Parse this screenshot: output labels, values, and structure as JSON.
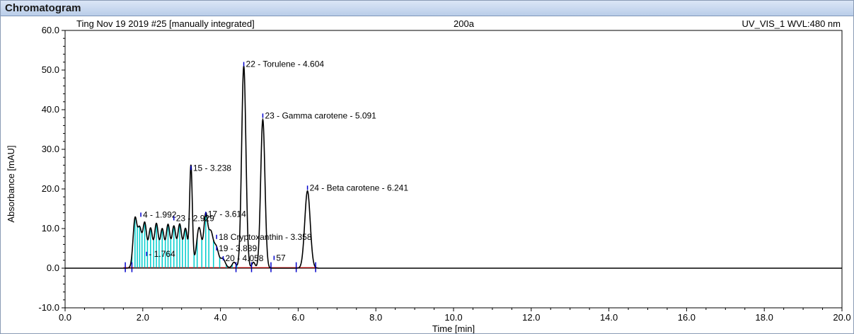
{
  "window": {
    "title": "Chromatogram"
  },
  "chart_data": {
    "type": "line",
    "header_left": "Ting Nov 19 2019 #25 [manually integrated]",
    "header_center": "200a",
    "header_right": "UV_VIS_1 WVL:480 nm",
    "xlabel": "Time [min]",
    "ylabel": "Absorbance [mAU]",
    "xlim": [
      0,
      20
    ],
    "ylim": [
      -10,
      60
    ],
    "xticks": [
      "0.0",
      "2.0",
      "4.0",
      "6.0",
      "8.0",
      "10.0",
      "12.0",
      "14.0",
      "16.0",
      "18.0",
      "20.0"
    ],
    "yticks": [
      "60.0",
      "50.0",
      "40.0",
      "30.0",
      "20.0",
      "10.0",
      "0.0",
      "-10.0"
    ],
    "line_color": "#000000",
    "baseline_color": "#ff0000",
    "integration_color": "#00cccc",
    "marker_color": "#0000cc",
    "peaks": [
      {
        "t": 1.8,
        "h": 12.0,
        "w": 0.05
      },
      {
        "t": 1.92,
        "h": 9.0,
        "w": 0.05
      },
      {
        "t": 2.05,
        "h": 10.5,
        "w": 0.05
      },
      {
        "t": 2.2,
        "h": 9.0,
        "w": 0.05
      },
      {
        "t": 2.35,
        "h": 10.0,
        "w": 0.05
      },
      {
        "t": 2.5,
        "h": 8.5,
        "w": 0.05
      },
      {
        "t": 2.65,
        "h": 9.5,
        "w": 0.05
      },
      {
        "t": 2.8,
        "h": 9.0,
        "w": 0.05
      },
      {
        "t": 2.95,
        "h": 9.5,
        "w": 0.05
      },
      {
        "t": 3.1,
        "h": 8.5,
        "w": 0.05
      },
      {
        "t": 3.24,
        "h": 24.5,
        "w": 0.035
      },
      {
        "t": 3.45,
        "h": 9.0,
        "w": 0.06
      },
      {
        "t": 3.62,
        "h": 12.0,
        "w": 0.05
      },
      {
        "t": 3.75,
        "h": 8.0,
        "w": 0.06
      },
      {
        "t": 3.89,
        "h": 4.5,
        "w": 0.06
      },
      {
        "t": 4.06,
        "h": 2.0,
        "w": 0.06
      },
      {
        "t": 4.35,
        "h": 1.5,
        "w": 0.05
      },
      {
        "t": 4.6,
        "h": 51.0,
        "w": 0.055
      },
      {
        "t": 4.85,
        "h": 1.5,
        "w": 0.04
      },
      {
        "t": 5.09,
        "h": 37.5,
        "w": 0.055
      },
      {
        "t": 6.24,
        "h": 19.5,
        "w": 0.07
      }
    ],
    "integration_times": [
      1.72,
      1.8,
      1.86,
      1.92,
      1.98,
      2.05,
      2.12,
      2.2,
      2.28,
      2.35,
      2.42,
      2.5,
      2.58,
      2.65,
      2.72,
      2.8,
      2.88,
      2.95,
      3.02,
      3.1,
      3.17,
      3.32,
      3.4,
      3.52,
      3.62,
      3.7,
      3.82,
      3.98,
      4.15,
      4.3,
      4.42
    ],
    "markers": [
      1.55,
      1.72,
      4.4,
      4.8,
      5.3,
      5.95,
      6.45
    ],
    "labels": [
      {
        "text": "22 - Torulene - 4.604",
        "t": 4.6,
        "y": 51.5
      },
      {
        "text": "23 - Gamma carotene - 5.091",
        "t": 5.09,
        "y": 38.5
      },
      {
        "text": "15 - 3.238",
        "t": 3.24,
        "y": 25.3
      },
      {
        "text": "24 - Beta carotene - 6.241",
        "t": 6.24,
        "y": 20.3
      },
      {
        "text": "4 - 1.992",
        "t": 1.95,
        "y": 13.5
      },
      {
        "text": "17 - 3.614",
        "t": 3.62,
        "y": 13.7
      },
      {
        "text": "23 - 2.929",
        "t": 2.8,
        "y": 12.6
      },
      {
        "text": "18 Cryptoxanthin - 3.358",
        "t": 3.9,
        "y": 7.9
      },
      {
        "text": "19 - 3.889",
        "t": 3.9,
        "y": 5.0
      },
      {
        "text": "- 1.764",
        "t": 2.1,
        "y": 3.6
      },
      {
        "text": "20 - 4.058",
        "t": 4.07,
        "y": 2.5
      },
      {
        "text": "57",
        "t": 5.38,
        "y": 2.6
      }
    ]
  }
}
